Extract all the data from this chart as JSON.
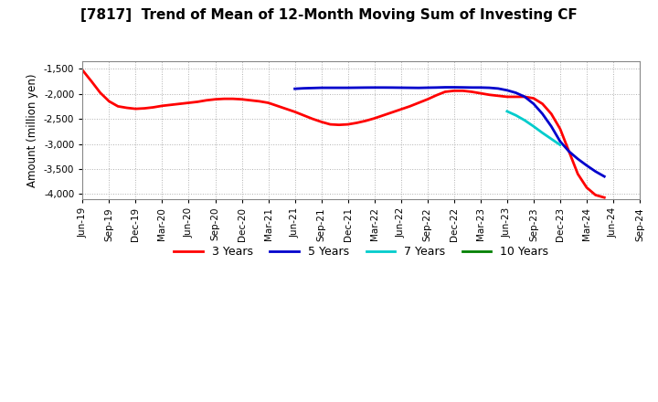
{
  "title": "[7817]  Trend of Mean of 12-Month Moving Sum of Investing CF",
  "ylabel": "Amount (million yen)",
  "ylim": [
    -4100,
    -1350
  ],
  "yticks": [
    -4000,
    -3500,
    -3000,
    -2500,
    -2000,
    -1500
  ],
  "background_color": "#ffffff",
  "plot_bg_color": "#ffffff",
  "grid_color": "#b0b0b0",
  "series": {
    "3yr": {
      "color": "#ff0000",
      "x": [
        0,
        1,
        2,
        3,
        4,
        5,
        6,
        7,
        8,
        9,
        10,
        11,
        12,
        13,
        14,
        15,
        16,
        17,
        18,
        19,
        20,
        21,
        22,
        23,
        24,
        25,
        26,
        27,
        28,
        29,
        30,
        31,
        32,
        33,
        34,
        35,
        36,
        37,
        38,
        39,
        40,
        41,
        42,
        43,
        44,
        45,
        46,
        47,
        48,
        49,
        50,
        51,
        52,
        53,
        54,
        55,
        56,
        57,
        58,
        59
      ],
      "y": [
        -1530,
        -1750,
        -1980,
        -2150,
        -2250,
        -2280,
        -2300,
        -2290,
        -2270,
        -2240,
        -2220,
        -2200,
        -2180,
        -2160,
        -2130,
        -2110,
        -2100,
        -2100,
        -2110,
        -2130,
        -2150,
        -2180,
        -2240,
        -2300,
        -2360,
        -2430,
        -2500,
        -2560,
        -2610,
        -2620,
        -2610,
        -2580,
        -2540,
        -2490,
        -2430,
        -2370,
        -2310,
        -2250,
        -2180,
        -2110,
        -2030,
        -1960,
        -1940,
        -1940,
        -1960,
        -1990,
        -2020,
        -2040,
        -2060,
        -2060,
        -2060,
        -2090,
        -2200,
        -2400,
        -2700,
        -3150,
        -3600,
        -3870,
        -4020,
        -4070
      ]
    },
    "5yr": {
      "color": "#0000cc",
      "x": [
        24,
        25,
        26,
        27,
        28,
        29,
        30,
        31,
        32,
        33,
        34,
        35,
        36,
        37,
        38,
        39,
        40,
        41,
        42,
        43,
        44,
        45,
        46,
        47,
        48,
        49,
        50,
        51,
        52,
        53,
        54,
        55,
        56,
        57,
        58,
        59
      ],
      "y": [
        -1900,
        -1890,
        -1885,
        -1880,
        -1880,
        -1880,
        -1880,
        -1878,
        -1876,
        -1875,
        -1875,
        -1876,
        -1878,
        -1880,
        -1882,
        -1878,
        -1875,
        -1870,
        -1870,
        -1872,
        -1875,
        -1875,
        -1880,
        -1895,
        -1930,
        -1980,
        -2060,
        -2200,
        -2400,
        -2650,
        -2950,
        -3150,
        -3300,
        -3430,
        -3550,
        -3650
      ]
    },
    "7yr": {
      "color": "#00cccc",
      "x": [
        48,
        49,
        50,
        51,
        52,
        53,
        54
      ],
      "y": [
        -2350,
        -2430,
        -2530,
        -2650,
        -2780,
        -2900,
        -3020
      ]
    },
    "10yr": {
      "color": "#008000",
      "x": [],
      "y": []
    }
  },
  "xtick_labels": [
    "Jun-19",
    "Sep-19",
    "Dec-19",
    "Mar-20",
    "Jun-20",
    "Sep-20",
    "Dec-20",
    "Mar-21",
    "Jun-21",
    "Sep-21",
    "Dec-21",
    "Mar-22",
    "Jun-22",
    "Sep-22",
    "Dec-22",
    "Mar-23",
    "Jun-23",
    "Sep-23",
    "Dec-23",
    "Mar-24",
    "Jun-24",
    "Sep-24"
  ],
  "xtick_positions": [
    0,
    3,
    6,
    9,
    12,
    15,
    18,
    21,
    24,
    27,
    30,
    33,
    36,
    39,
    42,
    45,
    48,
    51,
    54,
    57,
    60,
    63
  ],
  "total_x": 63,
  "legend_labels": [
    "3 Years",
    "5 Years",
    "7 Years",
    "10 Years"
  ],
  "legend_colors": [
    "#ff0000",
    "#0000cc",
    "#00cccc",
    "#008000"
  ]
}
